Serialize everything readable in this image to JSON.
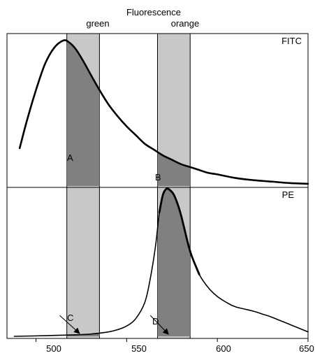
{
  "chart_data": [
    {
      "type": "line",
      "title": "Fluorescence",
      "x_tick_labels": [
        "500",
        "550",
        "600",
        "650"
      ],
      "x_ticks": [
        500,
        550,
        600,
        650
      ],
      "xlim": [
        484,
        650
      ],
      "ylim": [
        0,
        1
      ],
      "bands": [
        {
          "label": "green",
          "range": [
            517,
            535
          ],
          "color": "#c8c8c8"
        },
        {
          "label": "orange",
          "range": [
            567,
            585
          ],
          "color": "#c8c8c8"
        }
      ],
      "overlap_color": "#808080",
      "panels": [
        {
          "label": "FITC",
          "series": [
            {
              "x": [
                491,
                495,
                500,
                505,
                510,
                515,
                518,
                522,
                526,
                530,
                535,
                540,
                545,
                550,
                555,
                560,
                565,
                570,
                575,
                580,
                585,
                590,
                595,
                600,
                610,
                620,
                630,
                640,
                650
              ],
              "y": [
                0.26,
                0.45,
                0.66,
                0.84,
                0.95,
                1.0,
                0.99,
                0.94,
                0.86,
                0.77,
                0.66,
                0.56,
                0.48,
                0.41,
                0.35,
                0.29,
                0.25,
                0.21,
                0.18,
                0.15,
                0.13,
                0.11,
                0.09,
                0.08,
                0.055,
                0.04,
                0.03,
                0.02,
                0.015
              ]
            }
          ],
          "annotations": [
            {
              "text": "A",
              "x": 511,
              "y": 0.21
            },
            {
              "text": "B",
              "x": 563,
              "y": 0.07
            }
          ]
        },
        {
          "label": "PE",
          "series": [
            {
              "x": [
                488,
                500,
                510,
                520,
                530,
                540,
                545,
                550,
                555,
                560,
                563,
                566,
                568,
                570,
                572,
                574,
                576,
                578,
                580,
                582,
                584,
                586,
                590,
                595,
                600,
                605,
                610,
                620,
                625,
                630,
                640,
                650
              ],
              "y": [
                0.0,
                0.003,
                0.006,
                0.01,
                0.015,
                0.03,
                0.045,
                0.07,
                0.12,
                0.23,
                0.39,
                0.62,
                0.84,
                0.96,
                1.0,
                0.99,
                0.96,
                0.9,
                0.82,
                0.72,
                0.62,
                0.54,
                0.42,
                0.33,
                0.27,
                0.23,
                0.2,
                0.17,
                0.15,
                0.13,
                0.08,
                0.03
              ]
            }
          ],
          "annotations": [
            {
              "text": "C",
              "x": 510,
              "y": 0.17,
              "arrow_to": [
                524,
                0.01
              ]
            },
            {
              "text": "D",
              "x": 560,
              "y": 0.17,
              "arrow_to": [
                573,
                0.005
              ]
            }
          ]
        }
      ]
    }
  ]
}
